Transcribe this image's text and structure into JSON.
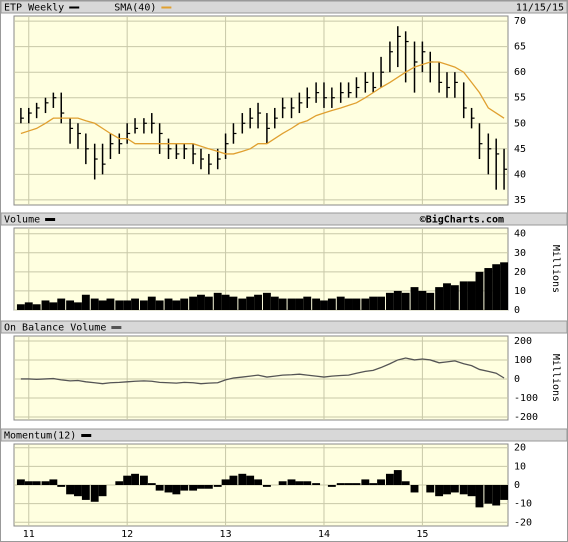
{
  "chart_data": [
    {
      "type": "ohlc",
      "date": "11/15/15",
      "x": [
        2010.92,
        2011.0,
        2011.08,
        2011.17,
        2011.25,
        2011.33,
        2011.42,
        2011.5,
        2011.58,
        2011.67,
        2011.75,
        2011.83,
        2011.92,
        2012.0,
        2012.08,
        2012.17,
        2012.25,
        2012.33,
        2012.42,
        2012.5,
        2012.58,
        2012.67,
        2012.75,
        2012.83,
        2012.92,
        2013.0,
        2013.08,
        2013.17,
        2013.25,
        2013.33,
        2013.42,
        2013.5,
        2013.58,
        2013.67,
        2013.75,
        2013.83,
        2013.92,
        2014.0,
        2014.08,
        2014.17,
        2014.25,
        2014.33,
        2014.42,
        2014.5,
        2014.58,
        2014.67,
        2014.75,
        2014.83,
        2014.92,
        2015.0,
        2015.08,
        2015.17,
        2015.25,
        2015.33,
        2015.42,
        2015.5,
        2015.58,
        2015.67,
        2015.75,
        2015.83
      ],
      "series": [
        {
          "name": "ETP Weekly",
          "color": "#000000",
          "values": [
            51,
            52,
            53,
            54,
            55,
            52,
            49,
            48,
            45,
            43,
            42,
            46,
            46,
            48,
            49,
            50,
            50,
            48,
            45,
            44,
            45,
            44,
            43,
            42,
            43,
            46,
            48,
            50,
            51,
            52,
            49,
            51,
            53,
            53,
            54,
            55,
            56,
            55,
            55,
            56,
            56,
            57,
            58,
            57,
            60,
            64,
            67,
            66,
            62,
            64,
            62,
            58,
            57,
            58,
            53,
            51,
            46,
            45,
            44,
            41
          ],
          "high": [
            53,
            53,
            54,
            55,
            56,
            56,
            51,
            50,
            48,
            46,
            46,
            48,
            48,
            50,
            51,
            51,
            52,
            50,
            47,
            46,
            46,
            46,
            45,
            44,
            45,
            48,
            50,
            52,
            53,
            54,
            52,
            53,
            55,
            55,
            56,
            57,
            58,
            58,
            57,
            58,
            58,
            59,
            60,
            60,
            63,
            66,
            69,
            68,
            66,
            66,
            64,
            62,
            60,
            60,
            58,
            53,
            50,
            48,
            47,
            45
          ],
          "low": [
            50,
            50,
            51,
            52,
            53,
            50,
            46,
            45,
            42,
            39,
            40,
            43,
            44,
            46,
            48,
            48,
            48,
            44,
            43,
            43,
            43,
            42,
            41,
            40,
            41,
            43,
            46,
            48,
            49,
            49,
            46,
            49,
            51,
            51,
            52,
            53,
            54,
            53,
            53,
            54,
            55,
            55,
            56,
            56,
            57,
            60,
            61,
            58,
            56,
            60,
            58,
            56,
            55,
            55,
            51,
            49,
            43,
            40,
            37,
            37
          ]
        },
        {
          "name": "SMA(40)",
          "color": "#e0a030",
          "values": [
            48,
            48.5,
            49,
            50,
            51,
            51,
            51,
            51,
            50.5,
            50,
            49,
            48,
            47,
            47,
            46,
            46,
            46,
            46,
            46,
            46,
            46,
            46,
            45.5,
            45,
            44.5,
            44,
            44,
            44.5,
            45,
            46,
            46,
            47,
            48,
            49,
            50,
            50.5,
            51.5,
            52,
            52.5,
            53,
            53.5,
            54,
            55,
            56,
            57,
            58,
            59,
            60,
            61,
            61.5,
            62,
            62,
            61.5,
            61,
            60,
            58,
            56,
            53,
            52,
            51
          ]
        }
      ],
      "ylim": [
        34,
        71
      ],
      "yticks": [
        35,
        40,
        45,
        50,
        55,
        60,
        65,
        70
      ],
      "grid": true
    },
    {
      "type": "bar",
      "title": "Volume",
      "credit": "©BigCharts.com",
      "ylabel": "Millions",
      "color": "#000000",
      "values": [
        3,
        4,
        3,
        5,
        4,
        6,
        5,
        4,
        8,
        6,
        5,
        6,
        5,
        5,
        6,
        5,
        7,
        5,
        6,
        5,
        6,
        7,
        8,
        7,
        9,
        8,
        7,
        6,
        7,
        8,
        9,
        7,
        6,
        6,
        6,
        7,
        6,
        5,
        6,
        7,
        6,
        6,
        6,
        7,
        7,
        9,
        10,
        9,
        12,
        10,
        9,
        12,
        14,
        13,
        15,
        15,
        20,
        22,
        24,
        25
      ],
      "ylim": [
        0,
        43
      ],
      "yticks": [
        0,
        10,
        20,
        30,
        40
      ],
      "grid": true
    },
    {
      "type": "line",
      "title": "On Balance Volume",
      "ylabel": "Millions",
      "color": "#555555",
      "values": [
        0,
        0,
        -2,
        0,
        2,
        -5,
        -10,
        -8,
        -15,
        -20,
        -25,
        -20,
        -18,
        -15,
        -12,
        -10,
        -12,
        -18,
        -20,
        -22,
        -18,
        -20,
        -25,
        -22,
        -20,
        -5,
        5,
        10,
        15,
        20,
        10,
        15,
        20,
        22,
        25,
        20,
        15,
        10,
        15,
        18,
        20,
        30,
        40,
        45,
        60,
        80,
        100,
        110,
        100,
        105,
        100,
        85,
        90,
        95,
        80,
        70,
        50,
        40,
        30,
        5
      ],
      "ylim": [
        -216,
        226
      ],
      "yticks": [
        -200,
        -100,
        0,
        100,
        200
      ],
      "grid": true
    },
    {
      "type": "bar",
      "title": "Momentum(12)",
      "color": "#000000",
      "values": [
        3,
        2,
        2,
        2,
        3,
        -1,
        -5,
        -6,
        -8,
        -9,
        -6,
        0,
        2,
        5,
        6,
        5,
        1,
        -3,
        -4,
        -5,
        -3,
        -3,
        -2,
        -2,
        -1,
        3,
        5,
        6,
        5,
        3,
        -1,
        0,
        2,
        3,
        2,
        2,
        1,
        0,
        -1,
        1,
        1,
        1,
        3,
        1,
        3,
        6,
        8,
        2,
        -4,
        0,
        -4,
        -6,
        -5,
        -4,
        -5,
        -6,
        -12,
        -10,
        -11,
        -8
      ],
      "ylim": [
        -22,
        22
      ],
      "yticks": [
        -20,
        -10,
        0,
        10,
        20
      ],
      "grid": true,
      "xlim": [
        2010.85,
        2015.87
      ],
      "xticks": [
        {
          "value": 2011,
          "label": "11"
        },
        {
          "value": 2012,
          "label": "12"
        },
        {
          "value": 2013,
          "label": "13"
        },
        {
          "value": 2014,
          "label": "14"
        },
        {
          "value": 2015,
          "label": "15"
        }
      ]
    }
  ]
}
